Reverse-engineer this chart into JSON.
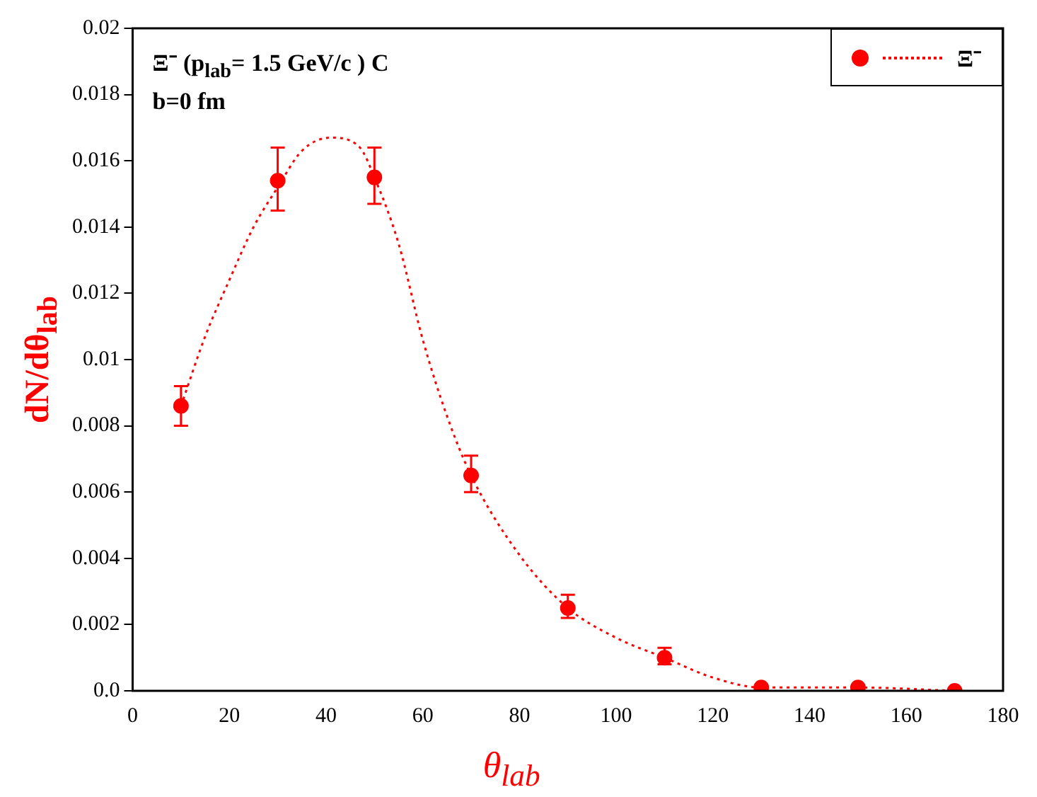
{
  "chart_data": {
    "type": "scatter",
    "xlabel": "θ$_{lab}$",
    "ylabel": "dN/dθ$_{lab}$",
    "annotations": [
      "Ξ⁻ (p$_{lab}$= 1.5 GeV/c ) C",
      "b=0 fm"
    ],
    "xlim": [
      0,
      180
    ],
    "xticks": [
      0,
      20,
      40,
      60,
      80,
      100,
      120,
      140,
      160,
      180
    ],
    "ylim": [
      0,
      0.02
    ],
    "yticks": [
      {
        "value": 0,
        "label": "0.0"
      },
      0.002,
      0.004,
      0.006,
      0.008,
      0.01,
      0.012,
      0.014,
      0.016,
      0.018,
      0.02
    ],
    "grid": false,
    "legend": "top right",
    "series": [
      {
        "name": "Ξ⁻",
        "color": "#ff0000",
        "marker": "circle",
        "x": [
          10,
          30,
          50,
          70,
          90,
          110,
          130,
          150,
          170
        ],
        "values": [
          0.0086,
          0.0154,
          0.0155,
          0.0065,
          0.0025,
          0.001,
          0.0001,
          0.0001,
          0
        ],
        "errors": [
          [
            0.008,
            0.0092
          ],
          [
            0.0145,
            0.0164
          ],
          [
            0.0147,
            0.0164
          ],
          [
            0.006,
            0.0071
          ],
          [
            0.0022,
            0.0029
          ],
          [
            0.0008,
            0.0013
          ],
          null,
          null,
          null
        ]
      },
      {
        "type": "line",
        "color": "#ff0000",
        "marker": "none",
        "line_style": "dotted",
        "x": [
          10,
          15,
          20,
          25,
          30,
          35,
          41,
          47,
          50,
          55,
          60,
          65,
          70,
          80,
          90,
          100,
          110,
          120,
          130,
          150,
          170
        ],
        "values": [
          0.0086,
          0.0107,
          0.0124,
          0.014,
          0.0152,
          0.0163,
          0.0167,
          0.0164,
          0.0155,
          0.0135,
          0.0106,
          0.0083,
          0.0065,
          0.0041,
          0.0025,
          0.0016,
          0.001,
          0.0004,
          0.0001,
          0.0001,
          0
        ]
      }
    ]
  }
}
